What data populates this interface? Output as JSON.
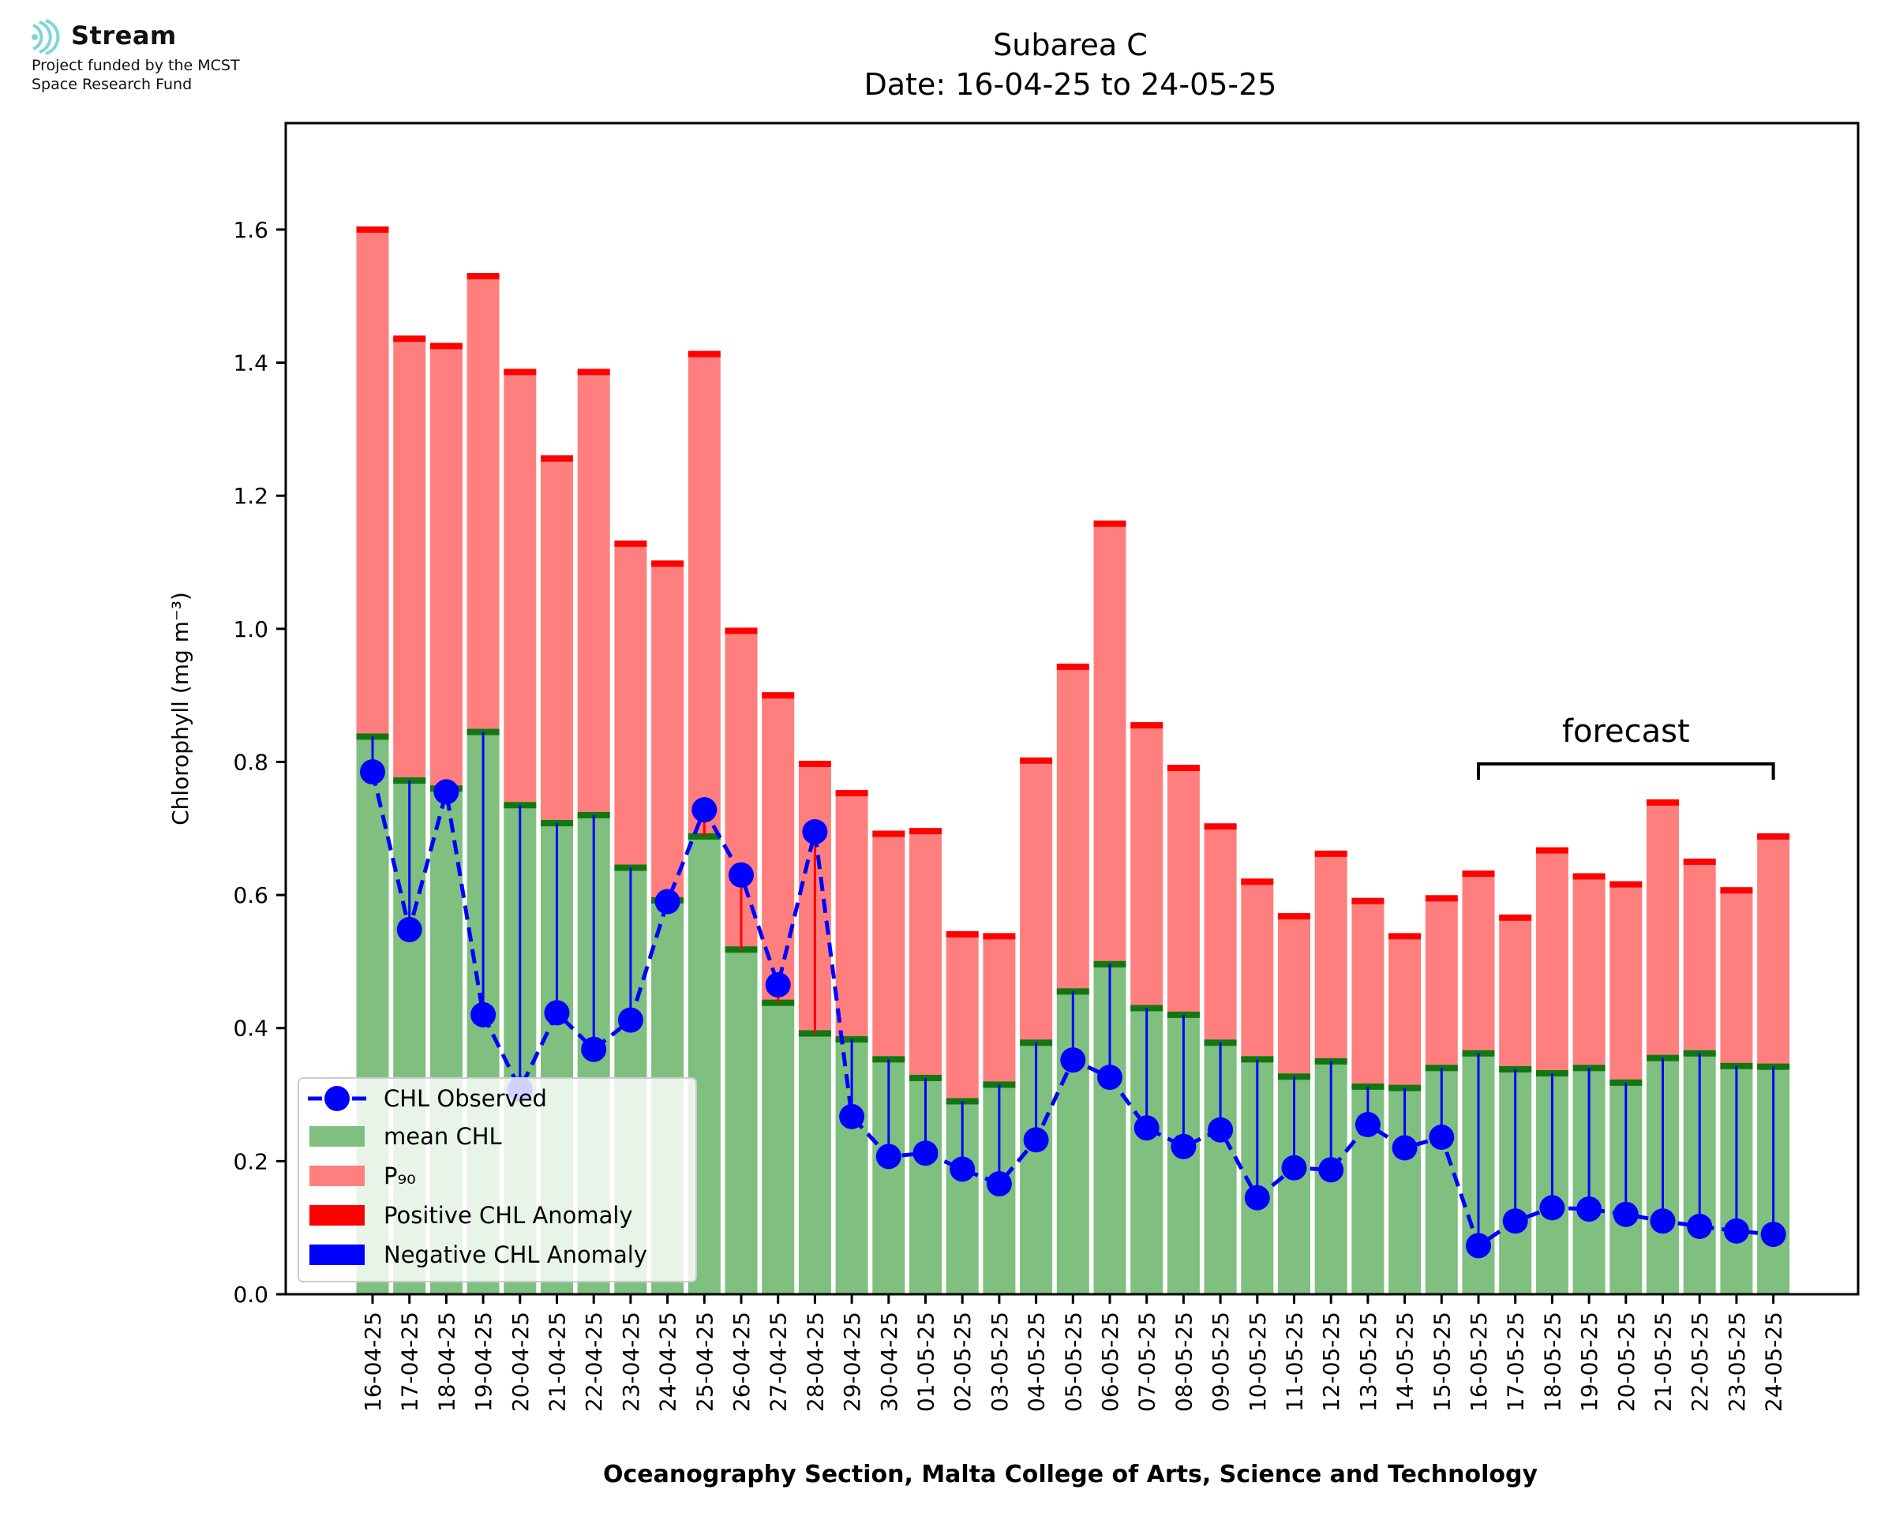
{
  "logo": {
    "name": "Stream",
    "line1": "Project funded by the MCST",
    "line2": "Space Research Fund"
  },
  "chart_data": {
    "type": "bar",
    "title": "Subarea C",
    "subtitle": "Date: 16-04-25 to 24-05-25",
    "xlabel": "Oceanography Section, Malta College of Arts, Science and Technology",
    "ylabel": "Chlorophyll (mg m⁻³)",
    "ylim": [
      0,
      1.76
    ],
    "yticks": [
      "0.0",
      "0.2",
      "0.4",
      "0.6",
      "0.8",
      "1.0",
      "1.2",
      "1.4",
      "1.6"
    ],
    "ytick_values": [
      0,
      0.2,
      0.4,
      0.6,
      0.8,
      1.0,
      1.2,
      1.4,
      1.6
    ],
    "categories": [
      "16-04-25",
      "17-04-25",
      "18-04-25",
      "19-04-25",
      "20-04-25",
      "21-04-25",
      "22-04-25",
      "23-04-25",
      "24-04-25",
      "25-04-25",
      "26-04-25",
      "27-04-25",
      "28-04-25",
      "29-04-25",
      "30-04-25",
      "01-05-25",
      "02-05-25",
      "03-05-25",
      "04-05-25",
      "05-05-25",
      "06-05-25",
      "07-05-25",
      "08-05-25",
      "09-05-25",
      "10-05-25",
      "11-05-25",
      "12-05-25",
      "13-05-25",
      "14-05-25",
      "15-05-25",
      "16-05-25",
      "17-05-25",
      "18-05-25",
      "19-05-25",
      "20-05-25",
      "21-05-25",
      "22-05-25",
      "23-05-25",
      "24-05-25"
    ],
    "series": [
      {
        "name": "CHL Observed",
        "kind": "line-markers",
        "color": "#0000ff",
        "values": [
          0.785,
          0.548,
          0.755,
          0.42,
          0.308,
          0.423,
          0.368,
          0.412,
          0.59,
          0.728,
          0.63,
          0.465,
          0.695,
          0.267,
          0.207,
          0.212,
          0.188,
          0.166,
          0.232,
          0.352,
          0.326,
          0.25,
          0.222,
          0.247,
          0.145,
          0.19,
          0.187,
          0.255,
          0.22,
          0.236,
          0.073,
          0.11,
          0.13,
          0.128,
          0.12,
          0.11,
          0.102,
          0.095,
          0.09
        ]
      },
      {
        "name": "mean CHL",
        "kind": "bar",
        "color": "#7fbf7f",
        "values": [
          0.838,
          0.772,
          0.76,
          0.845,
          0.735,
          0.708,
          0.72,
          0.641,
          0.592,
          0.688,
          0.518,
          0.438,
          0.392,
          0.383,
          0.353,
          0.325,
          0.29,
          0.315,
          0.378,
          0.455,
          0.496,
          0.43,
          0.42,
          0.378,
          0.353,
          0.327,
          0.35,
          0.312,
          0.31,
          0.34,
          0.362,
          0.338,
          0.332,
          0.34,
          0.318,
          0.355,
          0.362,
          0.343,
          0.342
        ]
      },
      {
        "name": "P₉₀",
        "kind": "bar",
        "color": "#ff7f7f",
        "values": [
          1.6,
          1.436,
          1.425,
          1.53,
          1.386,
          1.256,
          1.386,
          1.128,
          1.098,
          1.413,
          0.997,
          0.9,
          0.797,
          0.753,
          0.692,
          0.696,
          0.541,
          0.538,
          0.802,
          0.943,
          1.158,
          0.855,
          0.791,
          0.703,
          0.62,
          0.568,
          0.662,
          0.591,
          0.538,
          0.595,
          0.632,
          0.566,
          0.667,
          0.628,
          0.616,
          0.739,
          0.65,
          0.607,
          0.688
        ]
      },
      {
        "name": "Positive CHL Anomaly",
        "kind": "anomaly",
        "color": "#ff0000"
      },
      {
        "name": "Negative CHL Anomaly",
        "kind": "anomaly",
        "color": "#0000ff"
      }
    ],
    "forecast": {
      "label": "forecast",
      "from": "16-05-25",
      "to": "24-05-25"
    },
    "legend": "lower-left",
    "grid": false
  }
}
